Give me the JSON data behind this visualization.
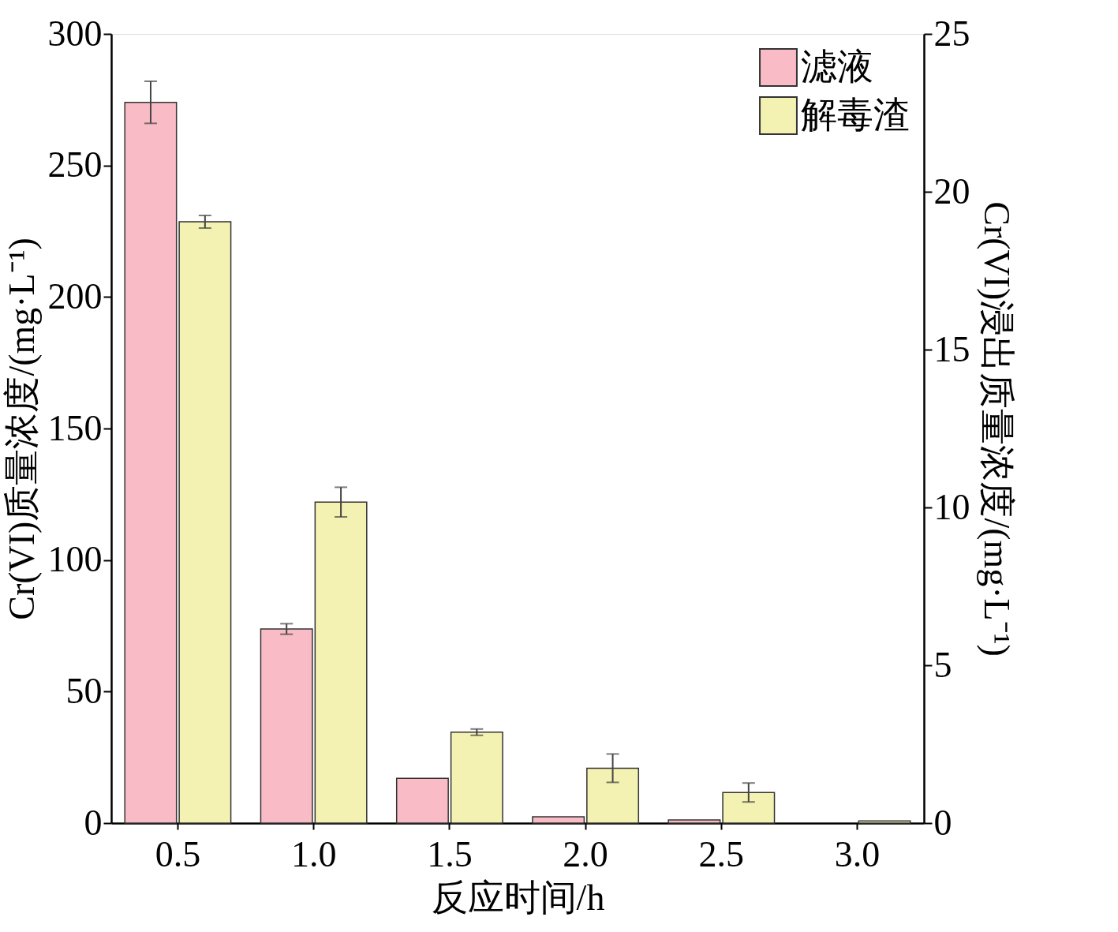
{
  "chart_data": {
    "type": "bar",
    "xlabel": "反应时间/h",
    "ylabel": "Cr(VI)质量浓度/(mg·L⁻¹)",
    "y2label": "Cr(VI)浸出质量浓度/(mg·L⁻¹)",
    "categories": [
      "0.5",
      "1.0",
      "1.5",
      "2.0",
      "2.5",
      "3.0"
    ],
    "series": [
      {
        "name": "滤液",
        "color": "#f9bcc6",
        "values": [
          274,
          73.8,
          17.0,
          2.4,
          1.2,
          null
        ],
        "errors": [
          8,
          2,
          null,
          null,
          null,
          null
        ]
      },
      {
        "name": "解毒渣",
        "color": "#f4f2b2",
        "axis": "y2",
        "values": [
          19.05,
          10.17,
          2.88,
          1.74,
          0.97,
          0.07
        ],
        "errors": [
          0.2,
          0.47,
          0.1,
          0.45,
          0.3,
          null
        ]
      }
    ],
    "ylim": [
      0,
      300
    ],
    "yticks": [
      0,
      50,
      100,
      150,
      200,
      250,
      300
    ],
    "y2lim": [
      0,
      25
    ],
    "y2ticks": [
      0,
      5,
      10,
      15,
      20,
      25
    ],
    "legend": "top right",
    "grid": false
  }
}
